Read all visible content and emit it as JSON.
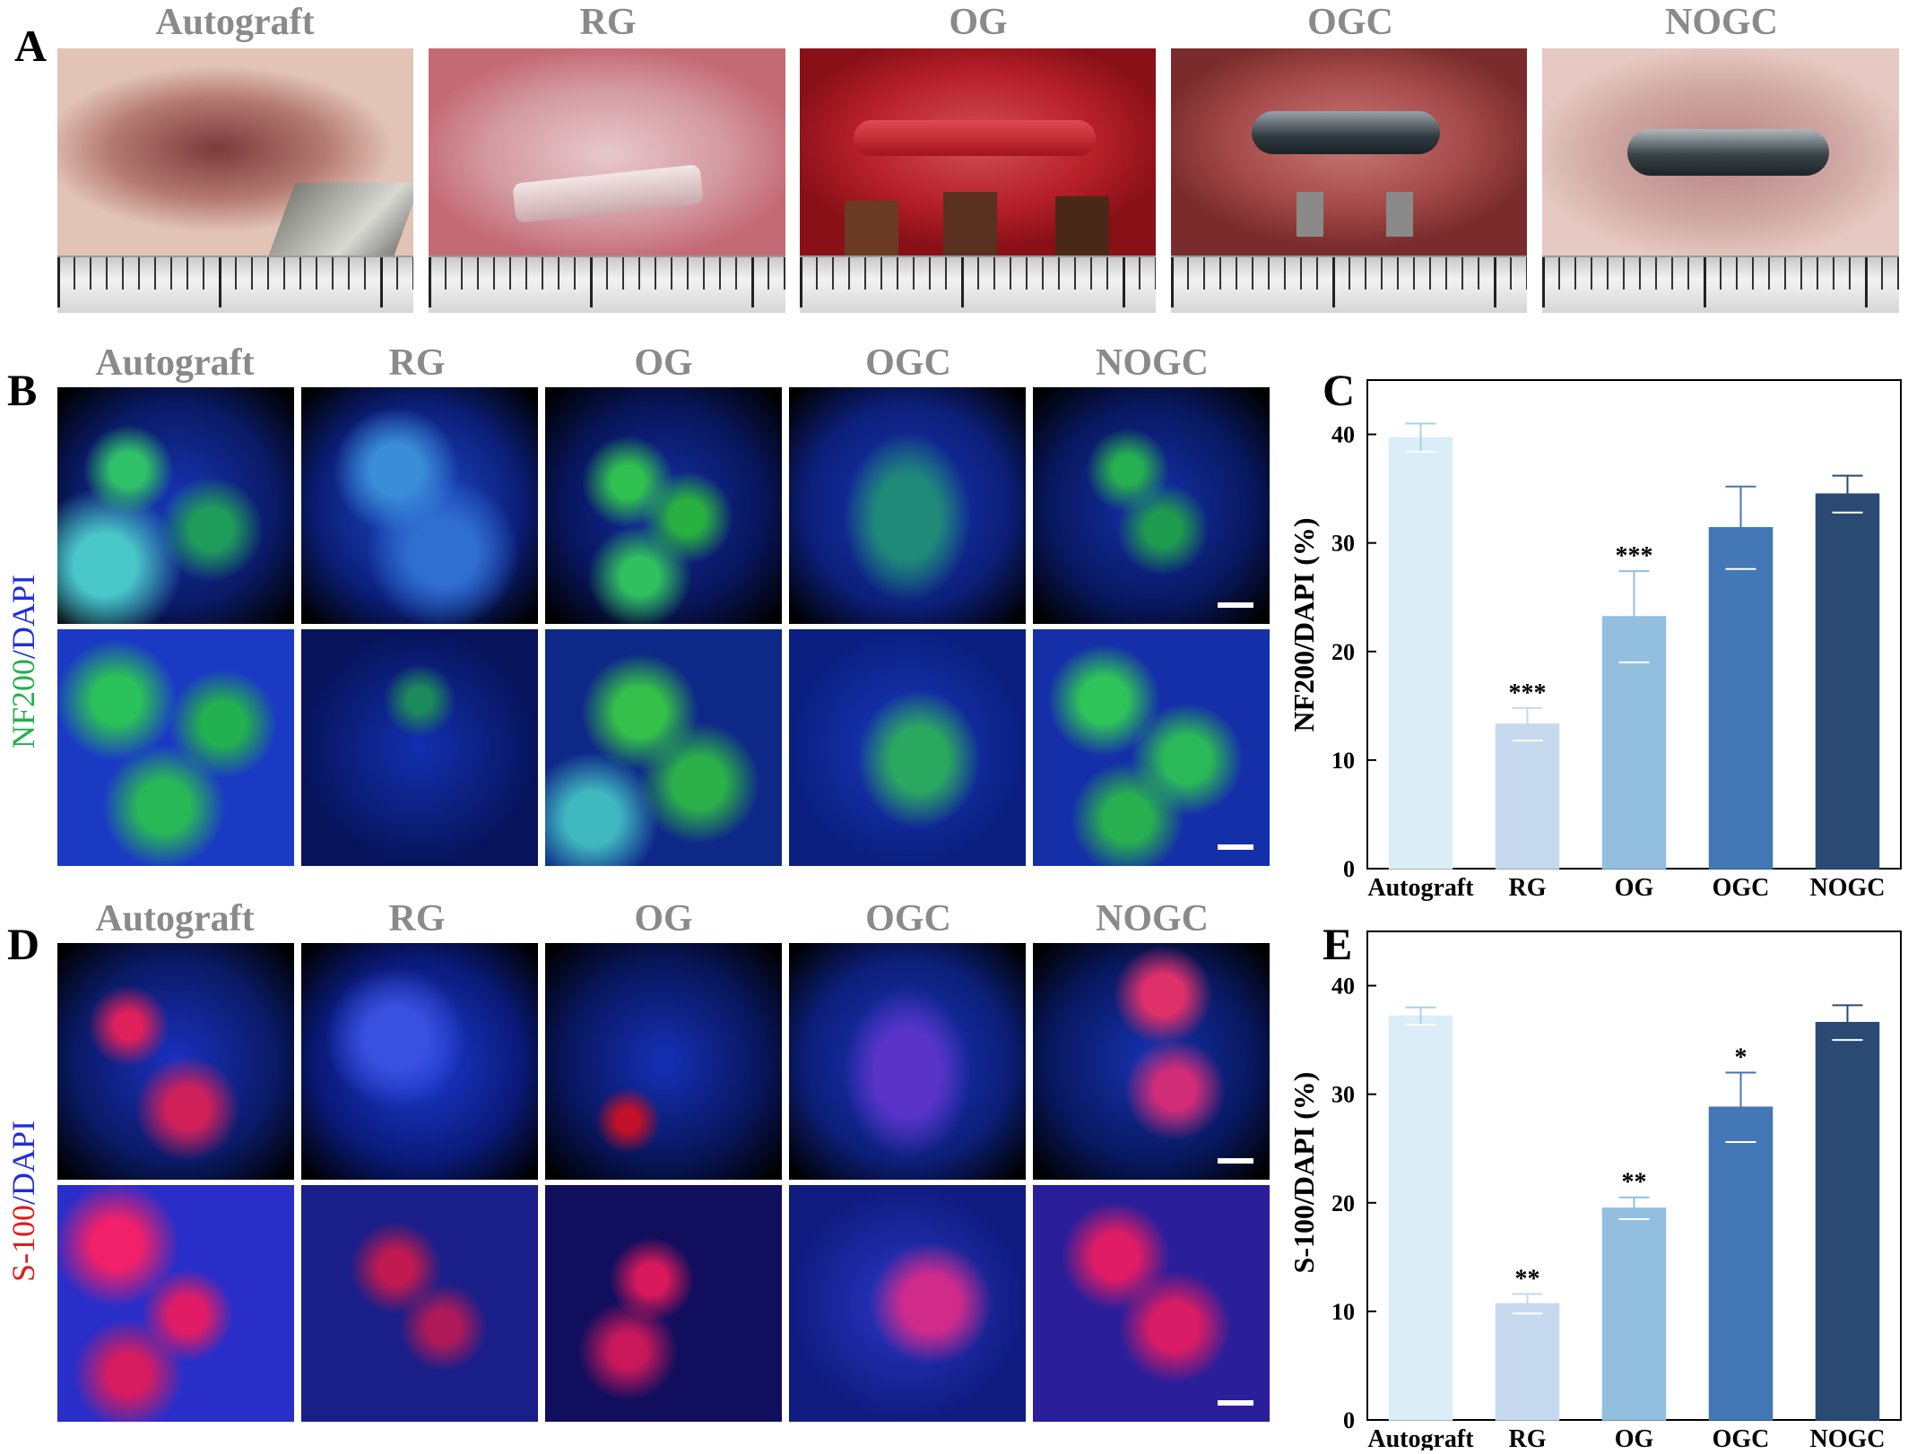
{
  "panel_letters": {
    "a": "A",
    "b": "B",
    "c": "C",
    "d": "D",
    "e": "E"
  },
  "groups": [
    "Autograft",
    "RG",
    "OG",
    "OGC",
    "NOGC"
  ],
  "stain_b": {
    "marker": "NF200",
    "sep": "/",
    "dapi": "DAPI",
    "marker_color": "#22b14c",
    "dapi_color": "#1f2fd6"
  },
  "stain_d": {
    "marker": "S-100",
    "sep": "/",
    "dapi": "DAPI",
    "marker_color": "#e01b1b",
    "dapi_color": "#1f2fd6"
  },
  "colors": {
    "label_gray": "#8a8a8a",
    "bar_colors": [
      "#dbeef8",
      "#c6d9ee",
      "#92bfe0",
      "#4477b6",
      "#2a4a74"
    ]
  },
  "chart_data": [
    {
      "type": "bar",
      "panel": "C",
      "categories": [
        "Autograft",
        "RG",
        "OG",
        "OGC",
        "NOGC"
      ],
      "values": [
        39.7,
        13.3,
        23.2,
        31.4,
        34.5
      ],
      "errors": [
        1.3,
        1.5,
        4.2,
        3.8,
        1.7
      ],
      "significance": [
        "",
        "***",
        "***",
        "",
        ""
      ],
      "title": "",
      "xlabel": "",
      "ylabel": "NF200/DAPI (%)",
      "ylim": [
        0,
        45
      ],
      "yticks": [
        0,
        10,
        20,
        30,
        40
      ],
      "grid": false
    },
    {
      "type": "bar",
      "panel": "E",
      "categories": [
        "Autograft",
        "RG",
        "OG",
        "OGC",
        "NOGC"
      ],
      "values": [
        37.2,
        10.7,
        19.5,
        28.8,
        36.6
      ],
      "errors": [
        0.8,
        0.9,
        1.0,
        3.2,
        1.6
      ],
      "significance": [
        "",
        "**",
        "**",
        "*",
        ""
      ],
      "title": "",
      "xlabel": "",
      "ylabel": "S-100/DAPI (%)",
      "ylim": [
        0,
        45
      ],
      "yticks": [
        0,
        10,
        20,
        30,
        40
      ],
      "grid": false
    }
  ]
}
